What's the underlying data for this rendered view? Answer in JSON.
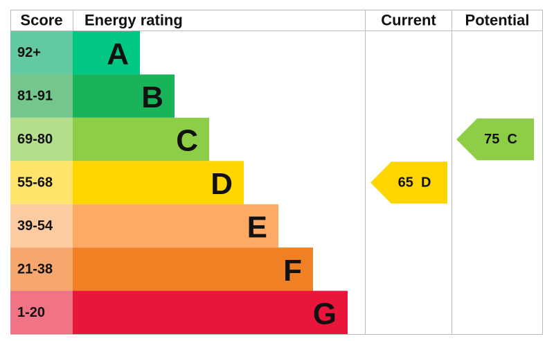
{
  "headers": {
    "score": "Score",
    "rating": "Energy rating",
    "current": "Current",
    "potential": "Potential"
  },
  "bands": [
    {
      "range": "92+",
      "letter": "A",
      "color": "#00c781",
      "light": "#63c9a1"
    },
    {
      "range": "81-91",
      "letter": "B",
      "color": "#19b459",
      "light": "#74c68d"
    },
    {
      "range": "69-80",
      "letter": "C",
      "color": "#8dce46",
      "light": "#b4de8c"
    },
    {
      "range": "55-68",
      "letter": "D",
      "color": "#ffd500",
      "light": "#ffe46b"
    },
    {
      "range": "39-54",
      "letter": "E",
      "color": "#fcaa65",
      "light": "#fdcba2"
    },
    {
      "range": "21-38",
      "letter": "F",
      "color": "#ef8023",
      "light": "#f5a76e"
    },
    {
      "range": "1-20",
      "letter": "G",
      "color": "#e9153b",
      "light": "#f07486"
    }
  ],
  "current": {
    "score": 65,
    "rating": "D"
  },
  "potential": {
    "score": 75,
    "rating": "C"
  }
}
